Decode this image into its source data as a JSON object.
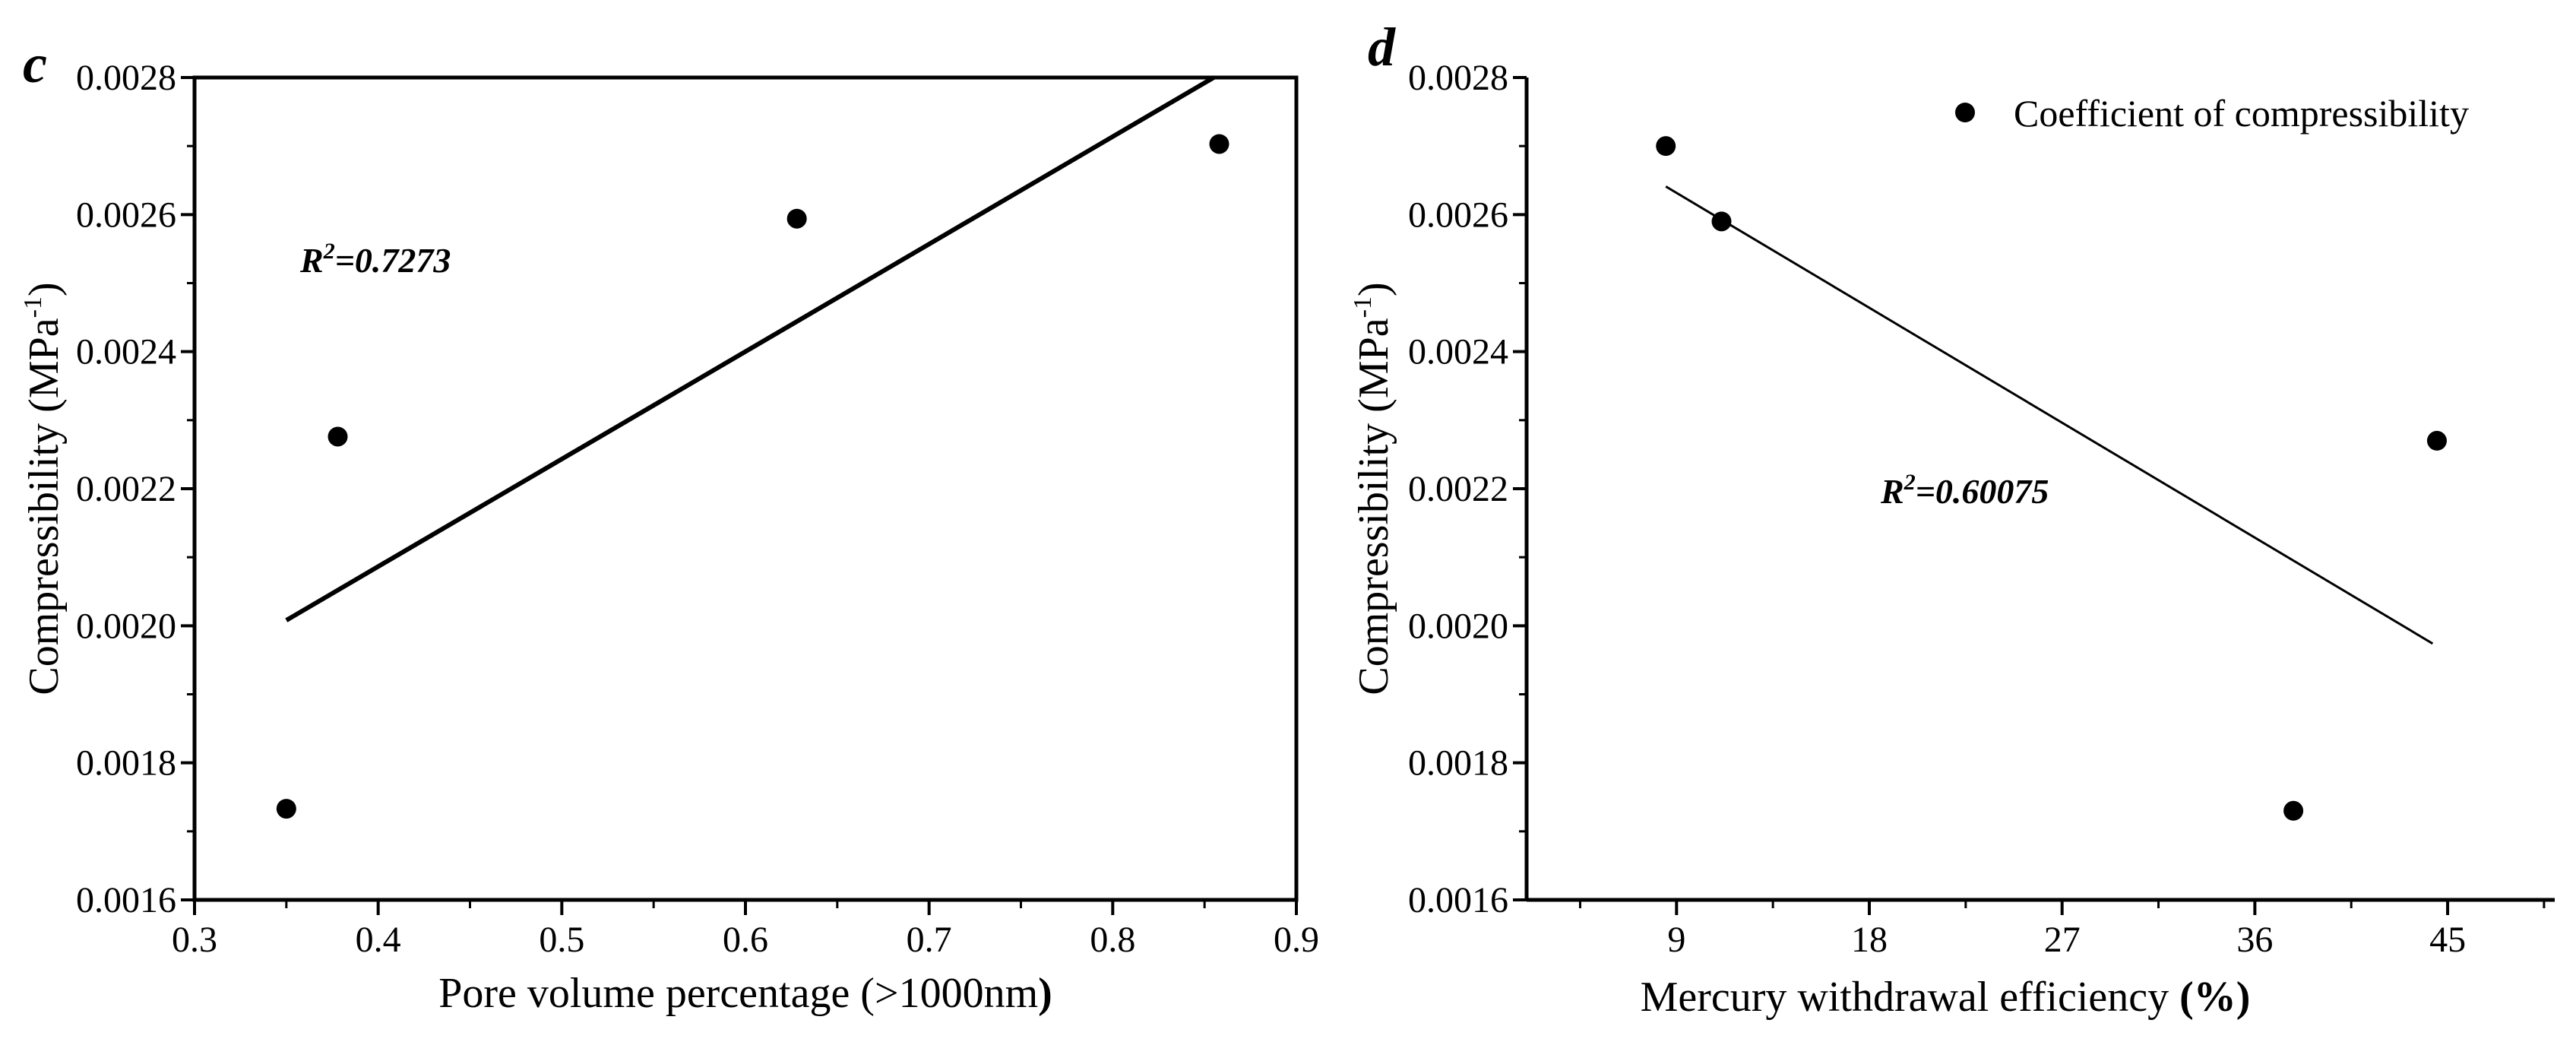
{
  "chart_data": [
    {
      "type": "scatter",
      "panel_label": "c",
      "xlabel_parts": [
        "Pore volume percentage (",
        ">",
        "1000nm",
        ")"
      ],
      "ylabel": "Compressibility (MPa",
      "ylabel_sup": "-1",
      "ylabel_close": ")",
      "xlim": [
        0.3,
        0.9
      ],
      "ylim": [
        0.0016,
        0.0028
      ],
      "xticks": [
        0.3,
        0.4,
        0.5,
        0.6,
        0.7,
        0.8,
        0.9
      ],
      "xtick_labels": [
        "0.3",
        "0.4",
        "0.5",
        "0.6",
        "0.7",
        "0.8",
        "0.9"
      ],
      "yticks": [
        0.0016,
        0.0018,
        0.002,
        0.0022,
        0.0024,
        0.0026,
        0.0028
      ],
      "ytick_labels": [
        "0.0016",
        "0.0018",
        "0.0020",
        "0.0022",
        "0.0024",
        "0.0026",
        "0.0028"
      ],
      "points": [
        {
          "x": 0.35,
          "y": 0.001733
        },
        {
          "x": 0.378,
          "y": 0.002276
        },
        {
          "x": 0.628,
          "y": 0.002594
        },
        {
          "x": 0.858,
          "y": 0.002703
        }
      ],
      "fit_line": {
        "x1": 0.35,
        "y1": 0.002008,
        "x2": 0.855,
        "y2": 0.0028
      },
      "annotation": {
        "prefix": "R",
        "sup": "2",
        "value": "=0.7273"
      }
    },
    {
      "type": "scatter",
      "panel_label": "d",
      "xlabel": "Mercury withdrawal efficiency ",
      "xlabel_bold": "(%)",
      "ylabel": "Compressibility (MPa",
      "ylabel_sup": "-1",
      "ylabel_close": ")",
      "xlim": [
        2,
        50
      ],
      "ylim": [
        0.0016,
        0.0028
      ],
      "xticks": [
        9,
        18,
        27,
        36,
        45
      ],
      "xtick_labels": [
        "9",
        "18",
        "27",
        "36",
        "45"
      ],
      "yticks": [
        0.0016,
        0.0018,
        0.002,
        0.0022,
        0.0024,
        0.0026,
        0.0028
      ],
      "ytick_labels": [
        "0.0016",
        "0.0018",
        "0.0020",
        "0.0022",
        "0.0024",
        "0.0026",
        "0.0028"
      ],
      "points": [
        {
          "x": 8.5,
          "y": 0.0027
        },
        {
          "x": 11.1,
          "y": 0.00259
        },
        {
          "x": 37.8,
          "y": 0.00173
        },
        {
          "x": 44.5,
          "y": 0.00227
        }
      ],
      "fit_line": {
        "x1": 8.5,
        "y1": 0.002641,
        "x2": 44.3,
        "y2": 0.001974
      },
      "annotation": {
        "prefix": "R",
        "sup": "2",
        "value": "=0.60075"
      },
      "legend": {
        "label": "Coefficient of compressibility",
        "placement": "top-right"
      }
    }
  ]
}
